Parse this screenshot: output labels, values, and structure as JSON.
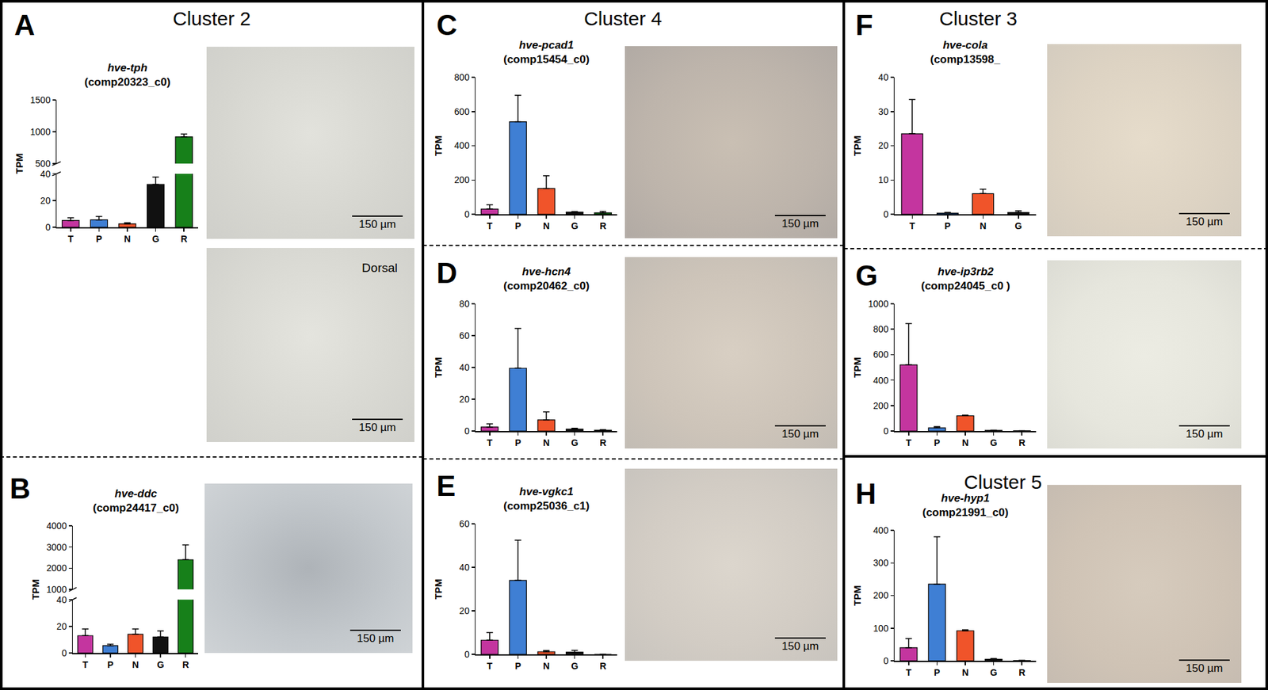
{
  "chart_data": [
    {
      "panel": "A",
      "cluster": "Cluster 2",
      "type": "bar",
      "title": "hve-tph",
      "subtitle": "(comp20323_c0)",
      "y_label": "TPM",
      "categories": [
        "T",
        "P",
        "N",
        "G",
        "R"
      ],
      "values": [
        5,
        5.5,
        2.5,
        32,
        920
      ],
      "errors": [
        2,
        2.5,
        0.8,
        5.5,
        45
      ],
      "colors": [
        "#c4359f",
        "#3f7fd4",
        "#f0542a",
        "#111111",
        "#17801a"
      ],
      "segments": [
        {
          "ylim": [
            0,
            40
          ],
          "yticks": [
            0,
            20,
            40
          ]
        },
        {
          "ylim": [
            500,
            1500
          ],
          "yticks": [
            500,
            1000,
            1500
          ]
        }
      ],
      "grid": false,
      "images": [
        {
          "scale_bar": "150 µm"
        },
        {
          "scale_bar": "150 µm",
          "label": "Dorsal"
        }
      ]
    },
    {
      "panel": "B",
      "type": "bar",
      "title": "hve-ddc",
      "subtitle": "(comp24417_c0)",
      "y_label": "TPM",
      "categories": [
        "T",
        "P",
        "N",
        "G",
        "R"
      ],
      "values": [
        13,
        5.5,
        14,
        12,
        2400
      ],
      "errors": [
        5,
        1,
        4,
        4.5,
        700
      ],
      "colors": [
        "#c4359f",
        "#3f7fd4",
        "#f0542a",
        "#111111",
        "#17801a"
      ],
      "segments": [
        {
          "ylim": [
            0,
            40
          ],
          "yticks": [
            0,
            20,
            40
          ]
        },
        {
          "ylim": [
            1000,
            4000
          ],
          "yticks": [
            1000,
            2000,
            3000,
            4000
          ]
        }
      ],
      "grid": false,
      "images": [
        {
          "scale_bar": "150 µm"
        }
      ]
    },
    {
      "panel": "C",
      "cluster": "Cluster 4",
      "type": "bar",
      "title": "hve-pcad1",
      "subtitle": "(comp15454_c0)",
      "y_label": "TPM",
      "categories": [
        "T",
        "P",
        "N",
        "G",
        "R"
      ],
      "values": [
        30,
        540,
        150,
        12,
        8
      ],
      "errors": [
        25,
        155,
        75,
        3,
        8
      ],
      "colors": [
        "#c4359f",
        "#3f7fd4",
        "#f0542a",
        "#111111",
        "#17801a"
      ],
      "ylim": [
        0,
        800
      ],
      "yticks": [
        0,
        200,
        400,
        600,
        800
      ],
      "grid": false,
      "images": [
        {
          "scale_bar": "150 µm"
        }
      ]
    },
    {
      "panel": "D",
      "type": "bar",
      "title": "hve-hcn4",
      "subtitle": "(comp20462_c0)",
      "y_label": "TPM",
      "categories": [
        "T",
        "P",
        "N",
        "G",
        "R"
      ],
      "values": [
        2.5,
        39.5,
        7,
        1.2,
        0.5
      ],
      "errors": [
        2,
        25,
        5,
        0.5,
        0.3
      ],
      "colors": [
        "#c4359f",
        "#3f7fd4",
        "#f0542a",
        "#111111",
        "#17801a"
      ],
      "ylim": [
        0,
        80
      ],
      "yticks": [
        0,
        20,
        40,
        60,
        80
      ],
      "grid": false,
      "images": [
        {
          "scale_bar": "150 µm"
        }
      ]
    },
    {
      "panel": "E",
      "type": "bar",
      "title": "hve-vgkc1",
      "subtitle": "(comp25036_c1)",
      "y_label": "TPM",
      "categories": [
        "T",
        "P",
        "N",
        "G",
        "R"
      ],
      "values": [
        6.5,
        34,
        1.2,
        1,
        0
      ],
      "errors": [
        3.5,
        18.5,
        0.5,
        0.8,
        0
      ],
      "colors": [
        "#c4359f",
        "#3f7fd4",
        "#f0542a",
        "#111111",
        "#17801a"
      ],
      "ylim": [
        0,
        60
      ],
      "yticks": [
        0,
        20,
        40,
        60
      ],
      "grid": false,
      "images": [
        {
          "scale_bar": "150 µm"
        }
      ]
    },
    {
      "panel": "F",
      "cluster": "Cluster 3",
      "type": "bar",
      "title": "hve-cola",
      "subtitle": "(comp13598_",
      "y_label": "TPM",
      "categories": [
        "T",
        "P",
        "N",
        "G"
      ],
      "values": [
        23.5,
        0.3,
        6,
        0.5
      ],
      "errors": [
        10,
        0.2,
        1.3,
        0.5
      ],
      "colors": [
        "#c4359f",
        "#3f7fd4",
        "#f0542a",
        "#111111"
      ],
      "ylim": [
        0,
        40
      ],
      "yticks": [
        0,
        10,
        20,
        30,
        40
      ],
      "grid": false,
      "images": [
        {
          "scale_bar": "150 µm"
        }
      ]
    },
    {
      "panel": "G",
      "type": "bar",
      "title": "hve-ip3rb2",
      "subtitle": "(comp24045_c0 )",
      "y_label": "TPM",
      "categories": [
        "T",
        "P",
        "N",
        "G",
        "R"
      ],
      "values": [
        520,
        25,
        120,
        5,
        2
      ],
      "errors": [
        325,
        10,
        5,
        2,
        1
      ],
      "colors": [
        "#c4359f",
        "#3f7fd4",
        "#f0542a",
        "#111111",
        "#17801a"
      ],
      "ylim": [
        0,
        1000
      ],
      "yticks": [
        0,
        200,
        400,
        600,
        800,
        1000
      ],
      "grid": false,
      "images": [
        {
          "scale_bar": "150 µm"
        }
      ]
    },
    {
      "panel": "H",
      "cluster": "Cluster 5",
      "type": "bar",
      "title": "hve-hyp1",
      "subtitle": "(comp21991_c0)",
      "y_label": "TPM",
      "categories": [
        "T",
        "P",
        "N",
        "G",
        "R"
      ],
      "values": [
        40,
        235,
        92,
        5,
        1
      ],
      "errors": [
        28,
        145,
        3,
        2,
        0.5
      ],
      "colors": [
        "#c4359f",
        "#3f7fd4",
        "#f0542a",
        "#111111",
        "#17801a"
      ],
      "ylim": [
        0,
        400
      ],
      "yticks": [
        0,
        100,
        200,
        300,
        400
      ],
      "grid": false,
      "images": [
        {
          "scale_bar": "150 µm"
        }
      ]
    }
  ]
}
